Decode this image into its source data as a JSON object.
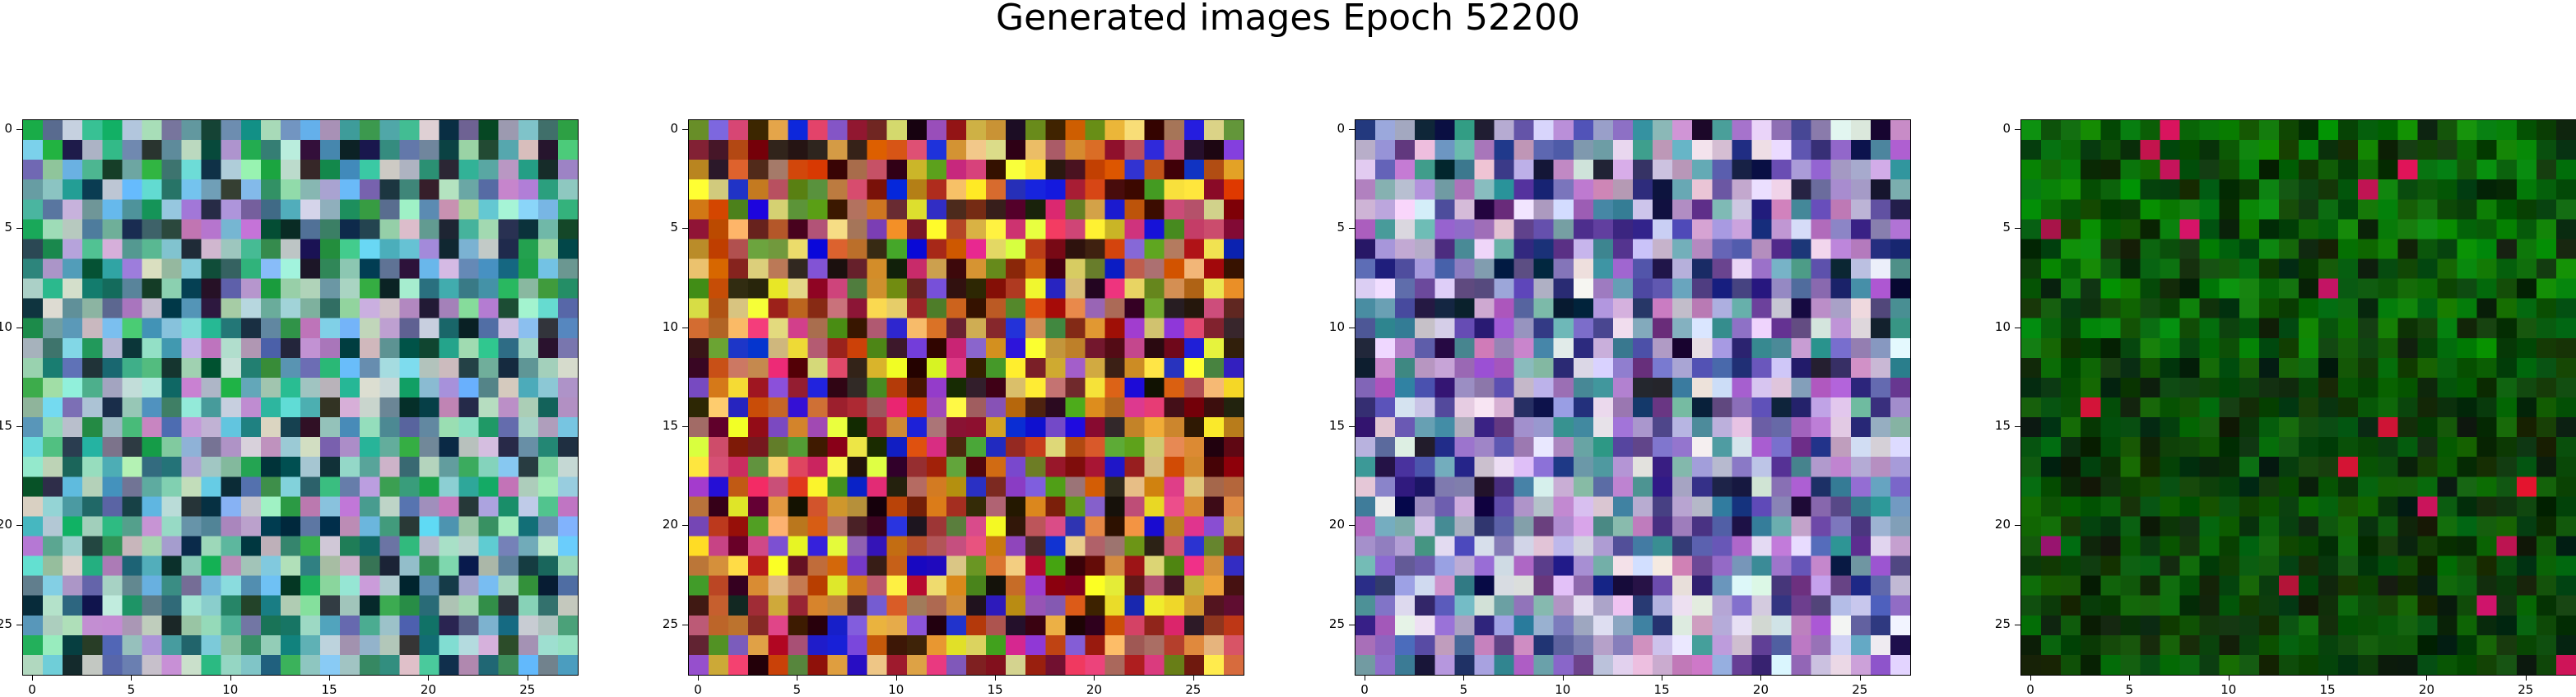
{
  "figure": {
    "title": "Generated images Epoch 52200"
  },
  "panels": [
    {
      "name": "generated-image-1",
      "palette": "teal-mix"
    },
    {
      "name": "generated-image-2",
      "palette": "warm-mix"
    },
    {
      "name": "generated-image-3",
      "palette": "lavender-mix"
    },
    {
      "name": "generated-image-4",
      "palette": "dark-green"
    }
  ],
  "axes": {
    "ticks": [
      0,
      5,
      10,
      15,
      20,
      25
    ],
    "tick_labels": [
      "0",
      "5",
      "10",
      "15",
      "20",
      "25"
    ],
    "grid_size": 28
  },
  "colors": {
    "background": "#ffffff",
    "axis": "#000000"
  }
}
